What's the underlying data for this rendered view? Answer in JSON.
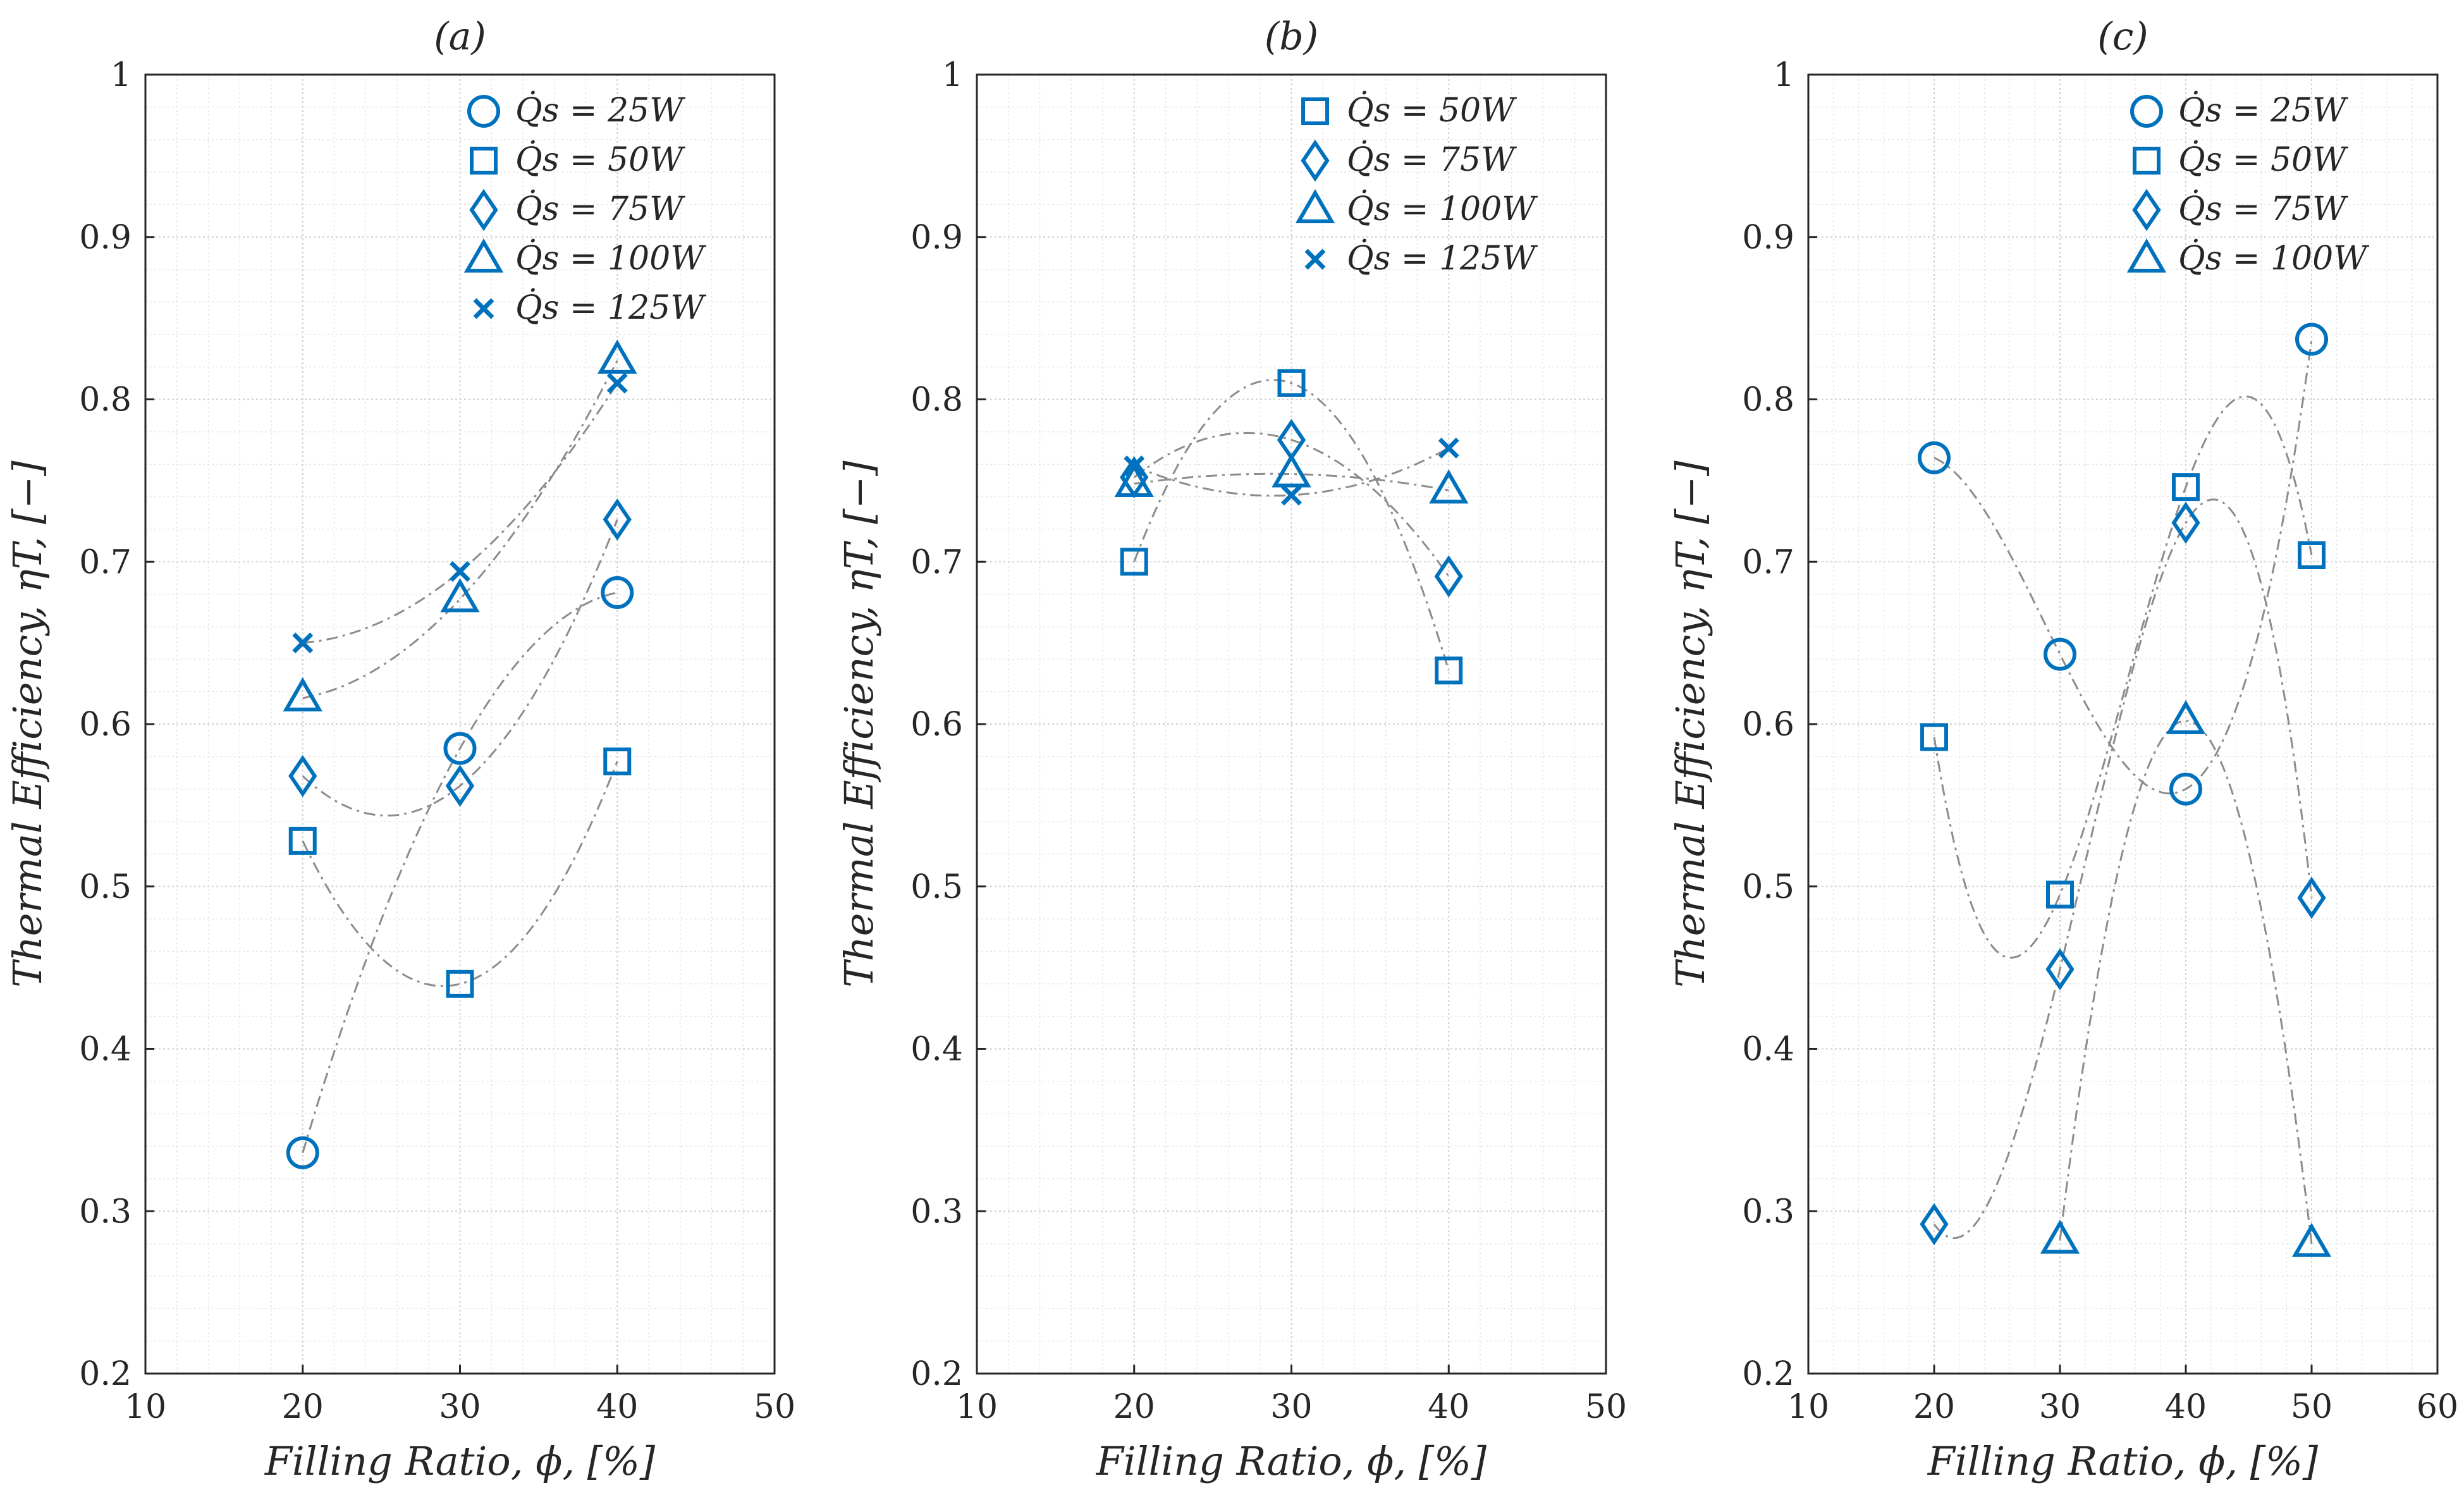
{
  "figure": {
    "colors": {
      "marker": "#0072BD",
      "curve": "#8c8c8c",
      "axis": "#262626",
      "grid": "#d0d0d0"
    }
  },
  "chart_data": [
    {
      "type": "scatter",
      "title": "(a)",
      "xlabel": "Filling Ratio, ϕ, [%]",
      "ylabel": "Thermal Efficiency, ηT, [−]",
      "xlim": [
        10,
        50
      ],
      "ylim": [
        0.2,
        1
      ],
      "xticks": [
        "10",
        "20",
        "30",
        "40",
        "50"
      ],
      "yticks": [
        "0.2",
        "0.3",
        "0.4",
        "0.5",
        "0.6",
        "0.7",
        "0.8",
        "0.9",
        "1"
      ],
      "legend_position": "top-right",
      "series": [
        {
          "name": "Q̇s = 25W",
          "marker": "circle",
          "x": [
            20,
            30,
            40
          ],
          "y": [
            0.336,
            0.585,
            0.681
          ]
        },
        {
          "name": "Q̇s = 50W",
          "marker": "square",
          "x": [
            20,
            30,
            40
          ],
          "y": [
            0.528,
            0.44,
            0.577
          ]
        },
        {
          "name": "Q̇s = 75W",
          "marker": "diamond",
          "x": [
            20,
            30,
            40
          ],
          "y": [
            0.568,
            0.562,
            0.726
          ]
        },
        {
          "name": "Q̇s = 100W",
          "marker": "triangle",
          "x": [
            20,
            30,
            40
          ],
          "y": [
            0.616,
            0.677,
            0.824
          ]
        },
        {
          "name": "Q̇s = 125W",
          "marker": "cross",
          "x": [
            20,
            30,
            40
          ],
          "y": [
            0.65,
            0.694,
            0.81
          ]
        }
      ]
    },
    {
      "type": "scatter",
      "title": "(b)",
      "xlabel": "Filling Ratio, ϕ, [%]",
      "ylabel": "Thermal Efficiency, ηT, [−]",
      "xlim": [
        10,
        50
      ],
      "ylim": [
        0.2,
        1
      ],
      "xticks": [
        "10",
        "20",
        "30",
        "40",
        "50"
      ],
      "yticks": [
        "0.2",
        "0.3",
        "0.4",
        "0.5",
        "0.6",
        "0.7",
        "0.8",
        "0.9",
        "1"
      ],
      "legend_position": "top-right",
      "series": [
        {
          "name": "Q̇s = 50W",
          "marker": "square",
          "x": [
            20,
            30,
            40
          ],
          "y": [
            0.7,
            0.81,
            0.633
          ]
        },
        {
          "name": "Q̇s = 75W",
          "marker": "diamond",
          "x": [
            20,
            30,
            40
          ],
          "y": [
            0.752,
            0.775,
            0.691
          ]
        },
        {
          "name": "Q̇s = 100W",
          "marker": "triangle",
          "x": [
            20,
            30,
            40
          ],
          "y": [
            0.748,
            0.754,
            0.744
          ]
        },
        {
          "name": "Q̇s = 125W",
          "marker": "cross",
          "x": [
            20,
            30,
            40
          ],
          "y": [
            0.759,
            0.741,
            0.77
          ]
        }
      ]
    },
    {
      "type": "scatter",
      "title": "(c)",
      "xlabel": "Filling Ratio, ϕ, [%]",
      "ylabel": "Thermal Efficiency, ηT, [−]",
      "xlim": [
        10,
        60
      ],
      "ylim": [
        0.2,
        1
      ],
      "xticks": [
        "10",
        "20",
        "30",
        "40",
        "50",
        "60"
      ],
      "yticks": [
        "0.2",
        "0.3",
        "0.4",
        "0.5",
        "0.6",
        "0.7",
        "0.8",
        "0.9",
        "1"
      ],
      "legend_position": "top-right",
      "series": [
        {
          "name": "Q̇s = 25W",
          "marker": "circle",
          "x": [
            20,
            30,
            40,
            50
          ],
          "y": [
            0.764,
            0.643,
            0.56,
            0.837
          ]
        },
        {
          "name": "Q̇s = 50W",
          "marker": "square",
          "x": [
            20,
            30,
            40,
            50
          ],
          "y": [
            0.592,
            0.495,
            0.746,
            0.704
          ]
        },
        {
          "name": "Q̇s = 75W",
          "marker": "diamond",
          "x": [
            20,
            30,
            40,
            50
          ],
          "y": [
            0.292,
            0.449,
            0.724,
            0.493
          ]
        },
        {
          "name": "Q̇s = 100W",
          "marker": "triangle",
          "x": [
            30,
            40,
            50
          ],
          "y": [
            0.282,
            0.602,
            0.28
          ]
        }
      ]
    }
  ]
}
